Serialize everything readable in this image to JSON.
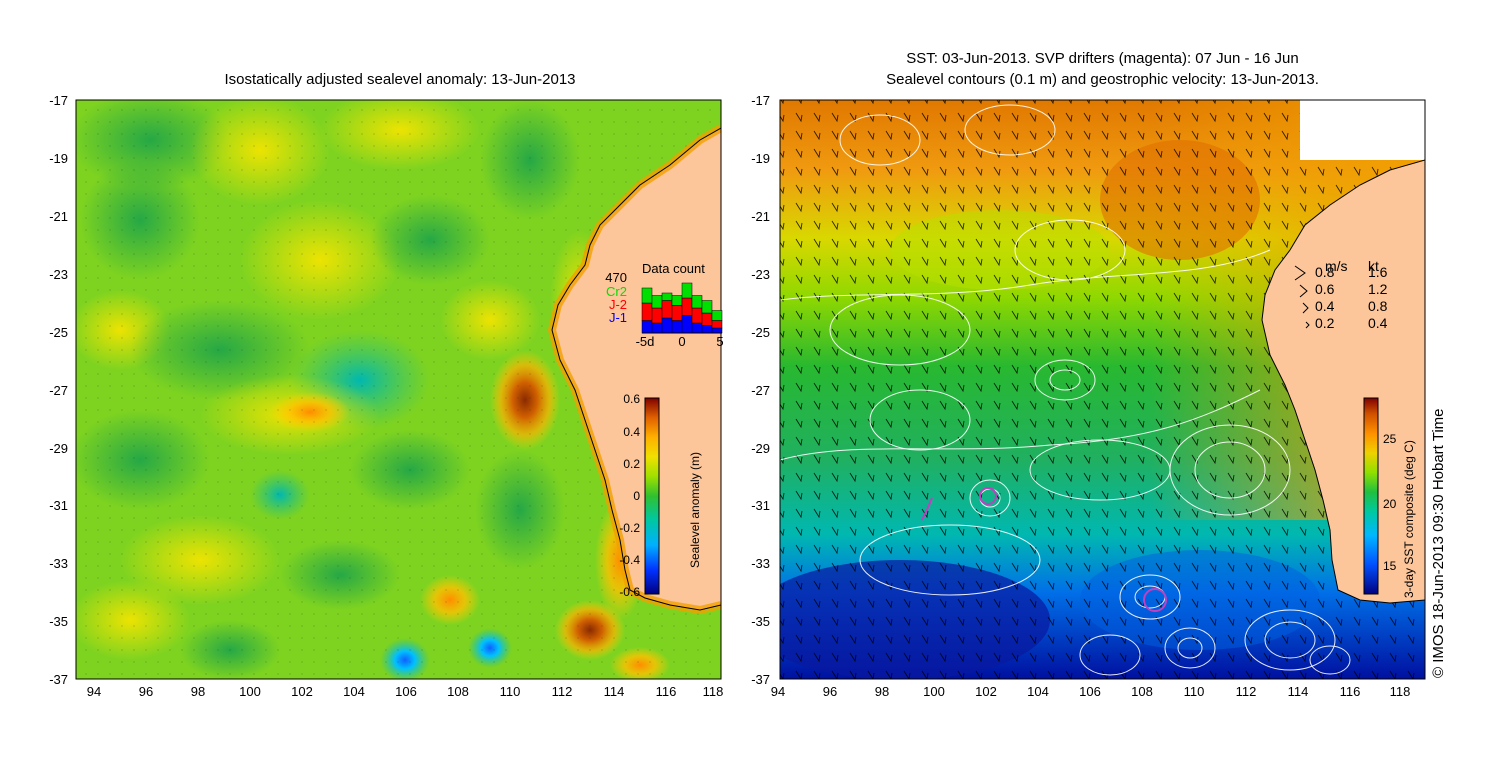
{
  "left_panel": {
    "title": "Isostatically adjusted sealevel anomaly: 13-Jun-2013",
    "y_ticks": [
      "-17",
      "-19",
      "-21",
      "-23",
      "-25",
      "-27",
      "-29",
      "-31",
      "-33",
      "-35",
      "-37"
    ],
    "x_ticks": [
      "94",
      "96",
      "98",
      "100",
      "102",
      "104",
      "106",
      "108",
      "110",
      "112",
      "114",
      "116",
      "118"
    ],
    "colorbar": {
      "label": "Sealevel anomaly (m)",
      "ticks": [
        "0.6",
        "0.4",
        "0.2",
        "0",
        "-0.2",
        "-0.4",
        "-0.6"
      ]
    },
    "data_count": {
      "title": "Data count",
      "total": "470",
      "legend": [
        "Cr2",
        "J-2",
        "J-1"
      ],
      "legend_colors": [
        "#00e000",
        "#ff0000",
        "#0000ff"
      ],
      "x_ticks": [
        "-5d",
        "0",
        "5"
      ],
      "bars": [
        {
          "j1": 0.25,
          "j2": 0.35,
          "cr2": 0.3
        },
        {
          "j1": 0.2,
          "j2": 0.3,
          "cr2": 0.25
        },
        {
          "j1": 0.3,
          "j2": 0.35,
          "cr2": 0.15
        },
        {
          "j1": 0.25,
          "j2": 0.3,
          "cr2": 0.2
        },
        {
          "j1": 0.35,
          "j2": 0.35,
          "cr2": 0.3
        },
        {
          "j1": 0.2,
          "j2": 0.3,
          "cr2": 0.25
        },
        {
          "j1": 0.15,
          "j2": 0.25,
          "cr2": 0.25
        },
        {
          "j1": 0.1,
          "j2": 0.15,
          "cr2": 0.2
        }
      ]
    }
  },
  "right_panel": {
    "title_line1": "SST: 03-Jun-2013. SVP drifters (magenta): 07 Jun - 16 Jun",
    "title_line2": "Sealevel contours (0.1 m) and geostrophic velocity: 13-Jun-2013.",
    "y_ticks": [
      "-17",
      "-19",
      "-21",
      "-23",
      "-25",
      "-27",
      "-29",
      "-31",
      "-33",
      "-35",
      "-37"
    ],
    "x_ticks": [
      "94",
      "96",
      "98",
      "100",
      "102",
      "104",
      "106",
      "108",
      "110",
      "112",
      "114",
      "116",
      "118"
    ],
    "colorbar": {
      "label": "3-day SST composite (deg C)",
      "ticks": [
        "25",
        "20",
        "15"
      ]
    },
    "velocity_legend": {
      "header_ms": "m/s",
      "header_kt": "kt",
      "rows": [
        {
          "ms": "0.8",
          "kt": "1.6"
        },
        {
          "ms": "0.6",
          "kt": "1.2"
        },
        {
          "ms": "0.4",
          "kt": "0.8"
        },
        {
          "ms": "0.2",
          "kt": "0.4"
        }
      ]
    }
  },
  "credit": "© IMOS 18-Jun-2013 09:30 Hobart Time",
  "colors": {
    "land": "#fcc59a",
    "anomaly_scale": [
      "#000080",
      "#0060ff",
      "#00c8ff",
      "#00d0a0",
      "#20c040",
      "#80e000",
      "#d0e800",
      "#ffd000",
      "#ff9000",
      "#c04000",
      "#800000"
    ],
    "sst_scale": [
      "#000080",
      "#0040ff",
      "#00b0ff",
      "#00c8a0",
      "#20c040",
      "#90e000",
      "#f0d000",
      "#ff9000",
      "#d05000",
      "#800000"
    ]
  }
}
